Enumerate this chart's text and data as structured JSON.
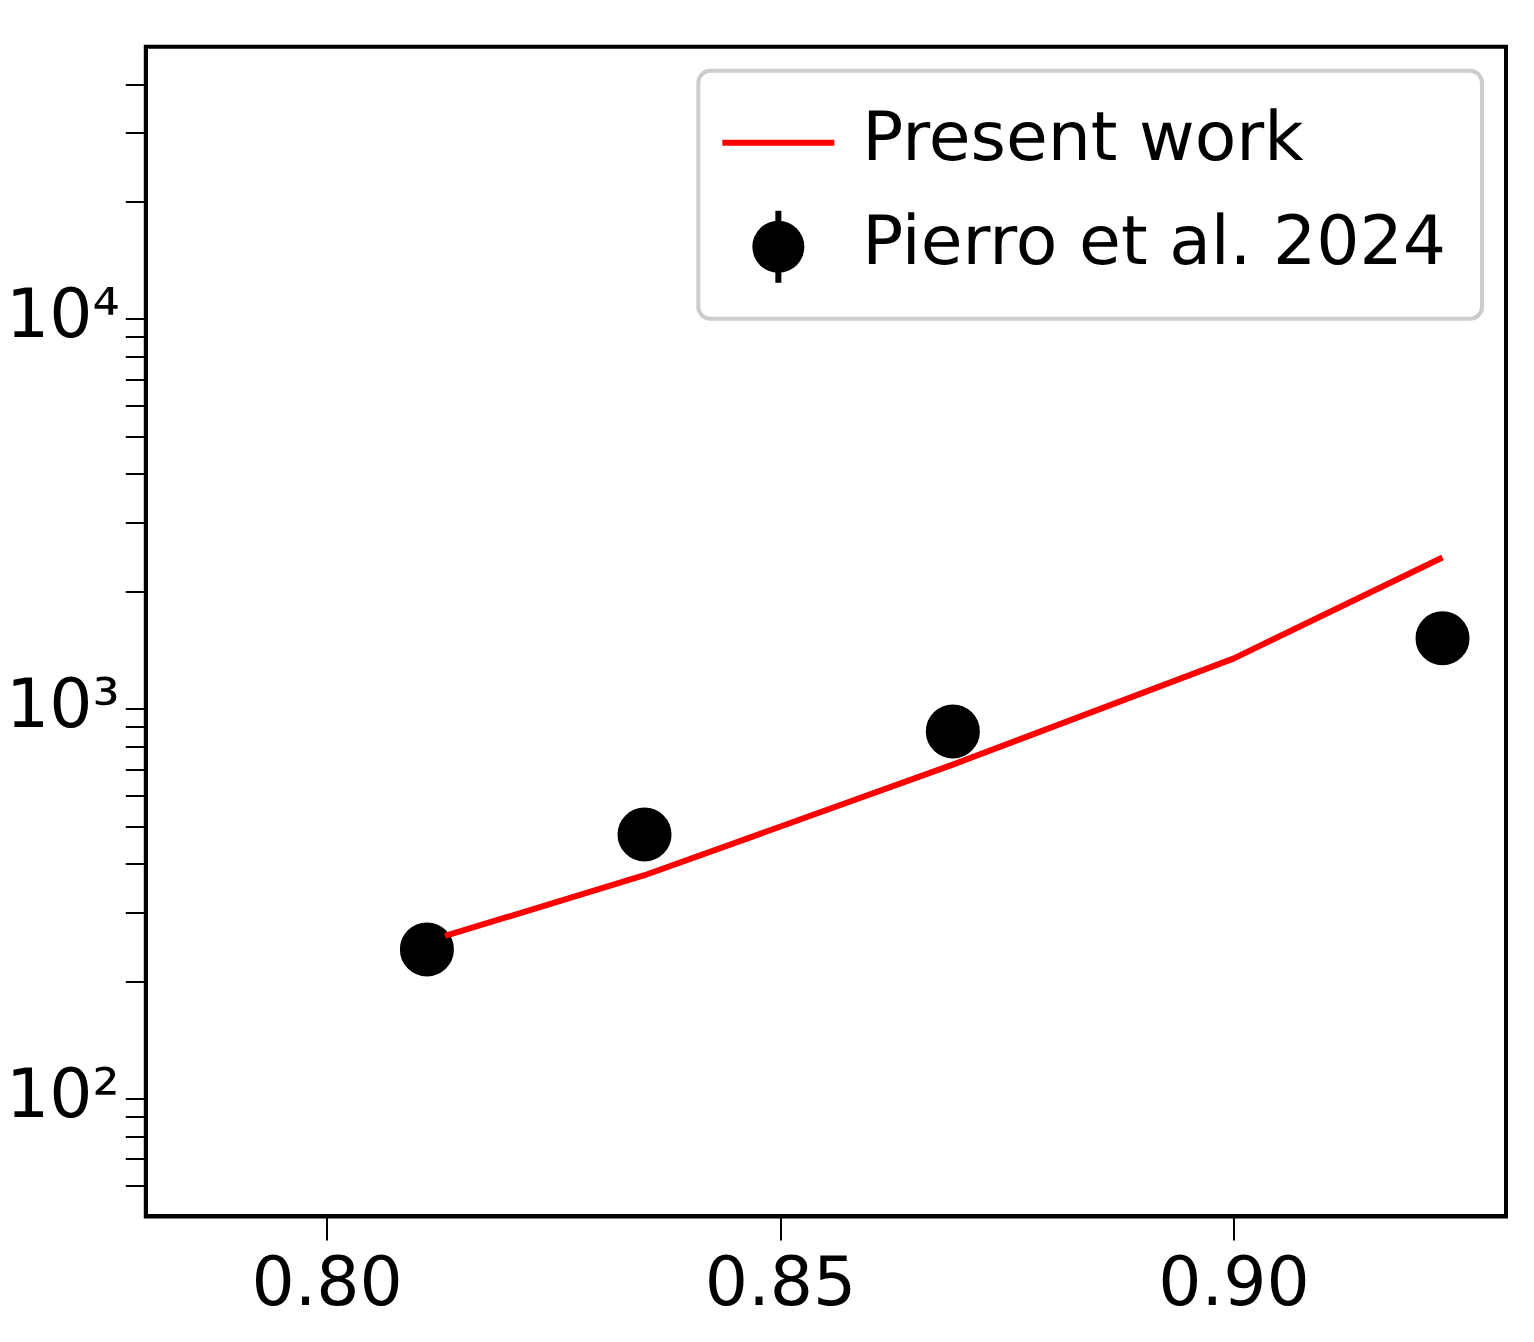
{
  "chart_data": {
    "type": "scatter",
    "xlim": [
      0.78,
      0.93
    ],
    "xticks": [
      {
        "value": 0.8,
        "label": "0.80"
      },
      0.85,
      {
        "value": 0.9,
        "label": "0.90"
      }
    ],
    "ylim": [
      50,
      50000
    ],
    "log": "y",
    "yticks": [
      {
        "value": 60,
        "label": null
      },
      {
        "value": 70,
        "label": null
      },
      {
        "value": 80,
        "label": null
      },
      {
        "value": 90,
        "label": null
      },
      {
        "value": 100,
        "label": "10²"
      },
      {
        "value": 200,
        "label": null
      },
      {
        "value": 300,
        "label": null
      },
      {
        "value": 400,
        "label": null
      },
      {
        "value": 500,
        "label": null
      },
      {
        "value": 600,
        "label": null
      },
      {
        "value": 700,
        "label": null
      },
      {
        "value": 800,
        "label": null
      },
      {
        "value": 900,
        "label": null
      },
      {
        "value": 1000,
        "label": "10³"
      },
      {
        "value": 2000,
        "label": null
      },
      {
        "value": 3000,
        "label": null
      },
      {
        "value": 4000,
        "label": null
      },
      {
        "value": 5000,
        "label": null
      },
      {
        "value": 6000,
        "label": null
      },
      {
        "value": 7000,
        "label": null
      },
      {
        "value": 8000,
        "label": null
      },
      {
        "value": 9000,
        "label": null
      },
      {
        "value": 10000,
        "label": "10⁴"
      },
      {
        "value": 20000,
        "label": null
      },
      {
        "value": 30000,
        "label": null
      },
      {
        "value": 40000,
        "label": null
      }
    ],
    "grid": false,
    "legend": "top right",
    "series": [
      {
        "name": "Present work",
        "type": "line",
        "color": "#ff0000",
        "marker": "none",
        "line_style": "solid",
        "x": [
          0.813,
          0.835,
          0.85,
          0.869,
          0.9,
          0.923
        ],
        "values": [
          262,
          375,
          500,
          721,
          1350,
          2450
        ]
      },
      {
        "name": "Pierro et al. 2024",
        "type": "scatter",
        "color": "#000000",
        "marker": "circle",
        "x": [
          0.811,
          0.835,
          0.869,
          0.923
        ],
        "values": [
          242,
          477,
          877,
          1520
        ],
        "errors": [
          30,
          50,
          90,
          170
        ]
      }
    ]
  }
}
